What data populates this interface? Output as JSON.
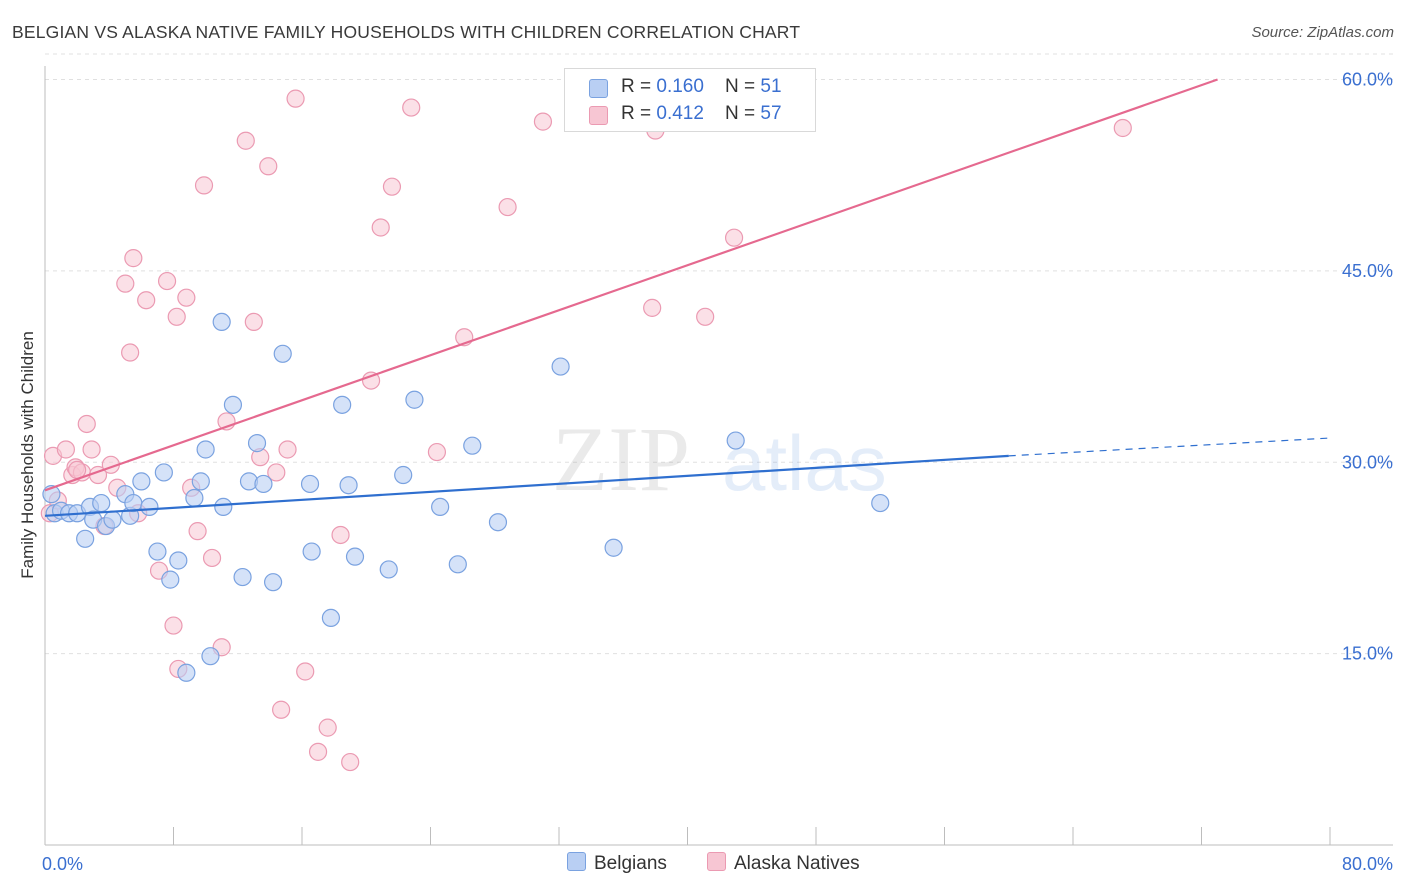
{
  "title": "BELGIAN VS ALASKA NATIVE FAMILY HOUSEHOLDS WITH CHILDREN CORRELATION CHART",
  "source": "Source: ZipAtlas.com",
  "watermark": {
    "zip": "ZIP",
    "atlas": "atlas"
  },
  "legend": {
    "belgians": {
      "r_label": "R = ",
      "r_value": "0.160",
      "n_label": "N = ",
      "n_value": "51"
    },
    "alaska": {
      "r_label": "R = ",
      "r_value": "0.412",
      "n_label": "N = ",
      "n_value": "57"
    }
  },
  "bottom_legend": {
    "belgians": "Belgians",
    "alaska": "Alaska Natives"
  },
  "colors": {
    "blue_fill": "#b9cff3",
    "blue_stroke": "#7aa2e0",
    "blue_line": "#2f6fcf",
    "pink_fill": "#f7c6d3",
    "pink_stroke": "#eb9ab2",
    "pink_line": "#e5698f",
    "axis_text": "#3a6fd0",
    "grid": "#e0e0e0"
  },
  "chart_data": {
    "type": "scatter",
    "title": "BELGIAN VS ALASKA NATIVE FAMILY HOUSEHOLDS WITH CHILDREN CORRELATION CHART",
    "xlabel": "",
    "ylabel": "Family Households with Children",
    "xlim": [
      0,
      80
    ],
    "ylim": [
      0,
      62
    ],
    "x_tick_labels": [
      "0.0%",
      "80.0%"
    ],
    "y_ticks": [
      15,
      30,
      45,
      60
    ],
    "y_tick_labels": [
      "15.0%",
      "30.0%",
      "45.0%",
      "60.0%"
    ],
    "grid": true,
    "series": [
      {
        "name": "Belgians",
        "r": 0.16,
        "n": 51,
        "trend": {
          "x0": 0,
          "y0": 25.8,
          "x1": 60,
          "y1": 30.5,
          "dashed_to_x": 80,
          "dashed_to_y": 31.9
        },
        "points": [
          [
            0.4,
            27.5
          ],
          [
            0.6,
            26.0
          ],
          [
            1.0,
            26.2
          ],
          [
            1.5,
            26.0
          ],
          [
            2.0,
            26.0
          ],
          [
            2.5,
            24.0
          ],
          [
            2.8,
            26.5
          ],
          [
            3.0,
            25.5
          ],
          [
            3.5,
            26.8
          ],
          [
            3.8,
            25.0
          ],
          [
            4.2,
            25.5
          ],
          [
            5.0,
            27.5
          ],
          [
            5.3,
            25.8
          ],
          [
            5.5,
            26.8
          ],
          [
            6.0,
            28.5
          ],
          [
            6.5,
            26.5
          ],
          [
            7.0,
            23.0
          ],
          [
            7.4,
            29.2
          ],
          [
            7.8,
            20.8
          ],
          [
            8.3,
            22.3
          ],
          [
            8.8,
            13.5
          ],
          [
            9.3,
            27.2
          ],
          [
            9.7,
            28.5
          ],
          [
            10.0,
            31.0
          ],
          [
            10.3,
            14.8
          ],
          [
            11.0,
            41.0
          ],
          [
            11.1,
            26.5
          ],
          [
            11.7,
            34.5
          ],
          [
            12.3,
            21.0
          ],
          [
            12.7,
            28.5
          ],
          [
            13.2,
            31.5
          ],
          [
            13.6,
            28.3
          ],
          [
            14.2,
            20.6
          ],
          [
            14.8,
            38.5
          ],
          [
            16.5,
            28.3
          ],
          [
            16.6,
            23.0
          ],
          [
            17.8,
            17.8
          ],
          [
            18.5,
            34.5
          ],
          [
            18.9,
            28.2
          ],
          [
            19.3,
            22.6
          ],
          [
            21.4,
            21.6
          ],
          [
            22.3,
            29.0
          ],
          [
            23.0,
            34.9
          ],
          [
            24.6,
            26.5
          ],
          [
            25.7,
            22.0
          ],
          [
            26.6,
            31.3
          ],
          [
            28.2,
            25.3
          ],
          [
            32.1,
            37.5
          ],
          [
            35.4,
            23.3
          ],
          [
            43.0,
            31.7
          ],
          [
            52.0,
            26.8
          ]
        ]
      },
      {
        "name": "Alaska Natives",
        "r": 0.412,
        "n": 57,
        "trend": {
          "x0": 0,
          "y0": 27.8,
          "x1": 73,
          "y1": 60.0
        },
        "points": [
          [
            0.3,
            26.0
          ],
          [
            0.5,
            30.5
          ],
          [
            0.8,
            27.0
          ],
          [
            1.3,
            31.0
          ],
          [
            1.7,
            29.0
          ],
          [
            1.9,
            29.6
          ],
          [
            2.3,
            29.2
          ],
          [
            2.6,
            33.0
          ],
          [
            2.9,
            31.0
          ],
          [
            3.3,
            29.0
          ],
          [
            3.7,
            25.0
          ],
          [
            4.1,
            29.8
          ],
          [
            4.5,
            28.0
          ],
          [
            5.0,
            44.0
          ],
          [
            5.3,
            38.6
          ],
          [
            5.5,
            46.0
          ],
          [
            5.8,
            26.0
          ],
          [
            6.3,
            42.7
          ],
          [
            7.1,
            21.5
          ],
          [
            7.6,
            44.2
          ],
          [
            8.0,
            17.2
          ],
          [
            8.2,
            41.4
          ],
          [
            8.3,
            13.8
          ],
          [
            8.8,
            42.9
          ],
          [
            9.1,
            28.0
          ],
          [
            9.5,
            24.6
          ],
          [
            9.9,
            51.7
          ],
          [
            10.4,
            22.5
          ],
          [
            11.0,
            15.5
          ],
          [
            11.3,
            33.2
          ],
          [
            12.5,
            55.2
          ],
          [
            13.0,
            41.0
          ],
          [
            13.4,
            30.4
          ],
          [
            13.9,
            53.2
          ],
          [
            14.4,
            29.2
          ],
          [
            14.7,
            10.6
          ],
          [
            15.1,
            31.0
          ],
          [
            15.6,
            58.5
          ],
          [
            16.2,
            13.6
          ],
          [
            17.0,
            7.3
          ],
          [
            17.6,
            9.2
          ],
          [
            18.4,
            24.3
          ],
          [
            19.0,
            6.5
          ],
          [
            20.3,
            36.4
          ],
          [
            20.9,
            48.4
          ],
          [
            21.6,
            51.6
          ],
          [
            22.8,
            57.8
          ],
          [
            24.4,
            30.8
          ],
          [
            26.1,
            39.8
          ],
          [
            28.8,
            50.0
          ],
          [
            31.0,
            56.7
          ],
          [
            37.8,
            42.1
          ],
          [
            38.0,
            56.0
          ],
          [
            41.1,
            41.4
          ],
          [
            42.9,
            47.6
          ],
          [
            67.1,
            56.2
          ],
          [
            2.0,
            29.4
          ]
        ]
      }
    ]
  }
}
